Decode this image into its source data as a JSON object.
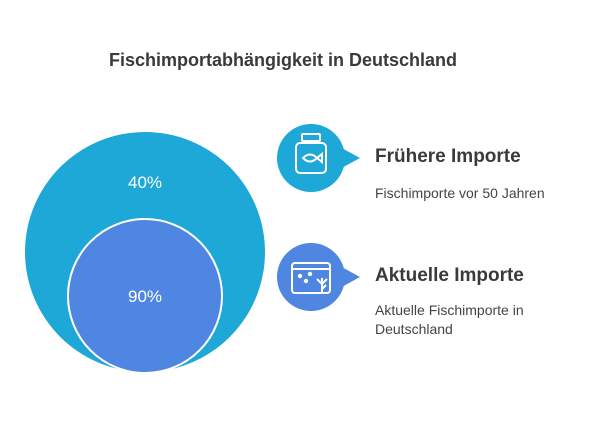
{
  "title": "Fischimportabhängigkeit in Deutschland",
  "colors": {
    "outer": "#1ea8d8",
    "inner": "#4f86e1",
    "text": "#3a3a3a"
  },
  "circles": [
    {
      "label": "40%",
      "color": "#1ea8d8"
    },
    {
      "label": "90%",
      "color": "#4f86e1"
    }
  ],
  "legend": [
    {
      "icon": "fish-jar-icon",
      "heading": "Frühere Importe",
      "description": "Fischimporte vor 50 Jahren",
      "color": "#1ea8d8"
    },
    {
      "icon": "aquarium-icon",
      "heading": "Aktuelle Importe",
      "description": "Aktuelle Fischimporte in Deutschland",
      "color": "#4f86e1"
    }
  ]
}
